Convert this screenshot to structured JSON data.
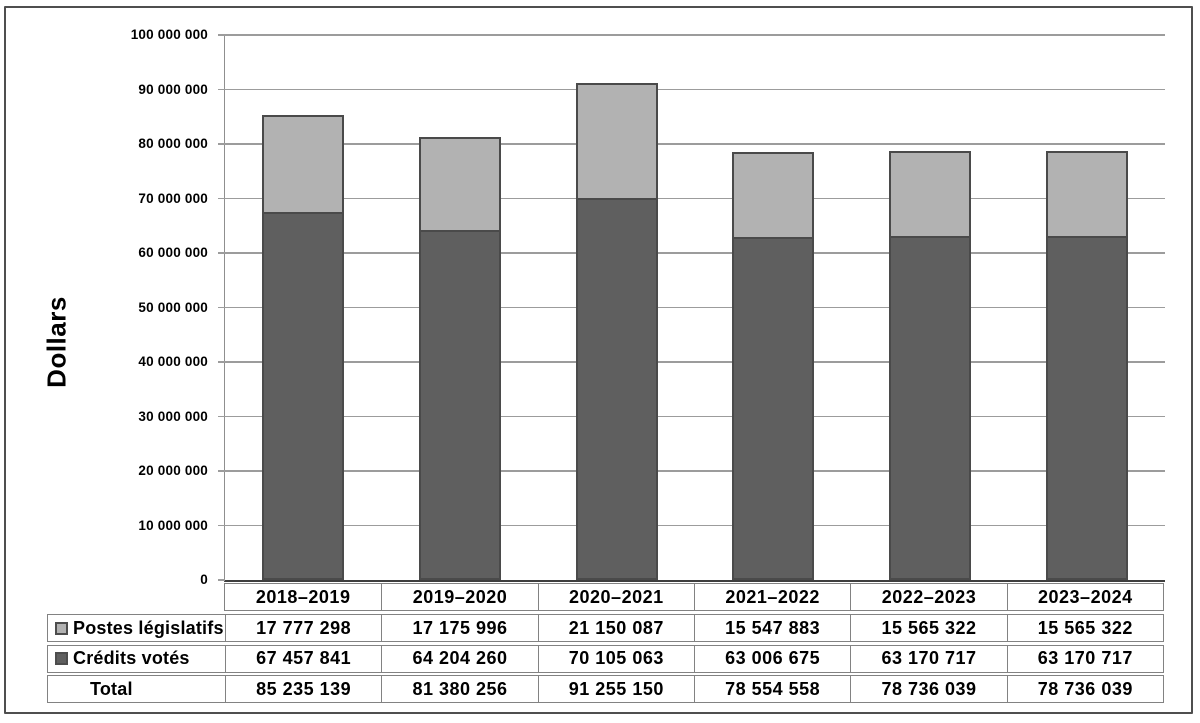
{
  "chart_data": {
    "type": "bar",
    "stacked": true,
    "ylabel": "Dollars",
    "categories": [
      "2018–2019",
      "2019–2020",
      "2020–2021",
      "2021–2022",
      "2022–2023",
      "2023–2024"
    ],
    "series": [
      {
        "name": "Postes législatifs",
        "color": "#b2b2b2",
        "values": [
          17777298,
          17175996,
          21150087,
          15547883,
          15565322,
          15565322
        ]
      },
      {
        "name": "Crédits votés",
        "color": "#5f5f5f",
        "values": [
          67457841,
          64204260,
          70105063,
          63006675,
          63170717,
          63170717
        ]
      }
    ],
    "stack_order_bottom_to_top": [
      "Crédits votés",
      "Postes législatifs"
    ],
    "totals_row": {
      "label": "Total",
      "values": [
        85235139,
        81380256,
        91255150,
        78554558,
        78736039,
        78736039
      ]
    },
    "ylim": [
      0,
      100000000
    ],
    "y_tick_step": 10000000,
    "y_tick_labels": [
      "0",
      "10 000 000",
      "20 000 000",
      "30 000 000",
      "40 000 000",
      "50 000 000",
      "60 000 000",
      "70 000 000",
      "80 000 000",
      "90 000 000",
      "100 000 000"
    ],
    "grid": true,
    "legend_position": "table-rows-left",
    "number_format": "space-grouped"
  },
  "colors": {
    "series_light": "#b2b2b2",
    "series_dark": "#5f5f5f",
    "bar_border": "#4a4a4a",
    "gridline": "#9c9c9c",
    "axis": "#3e3e3e",
    "table_border": "#828282",
    "figure_border": "#4f4f4f",
    "text": "#000000"
  }
}
